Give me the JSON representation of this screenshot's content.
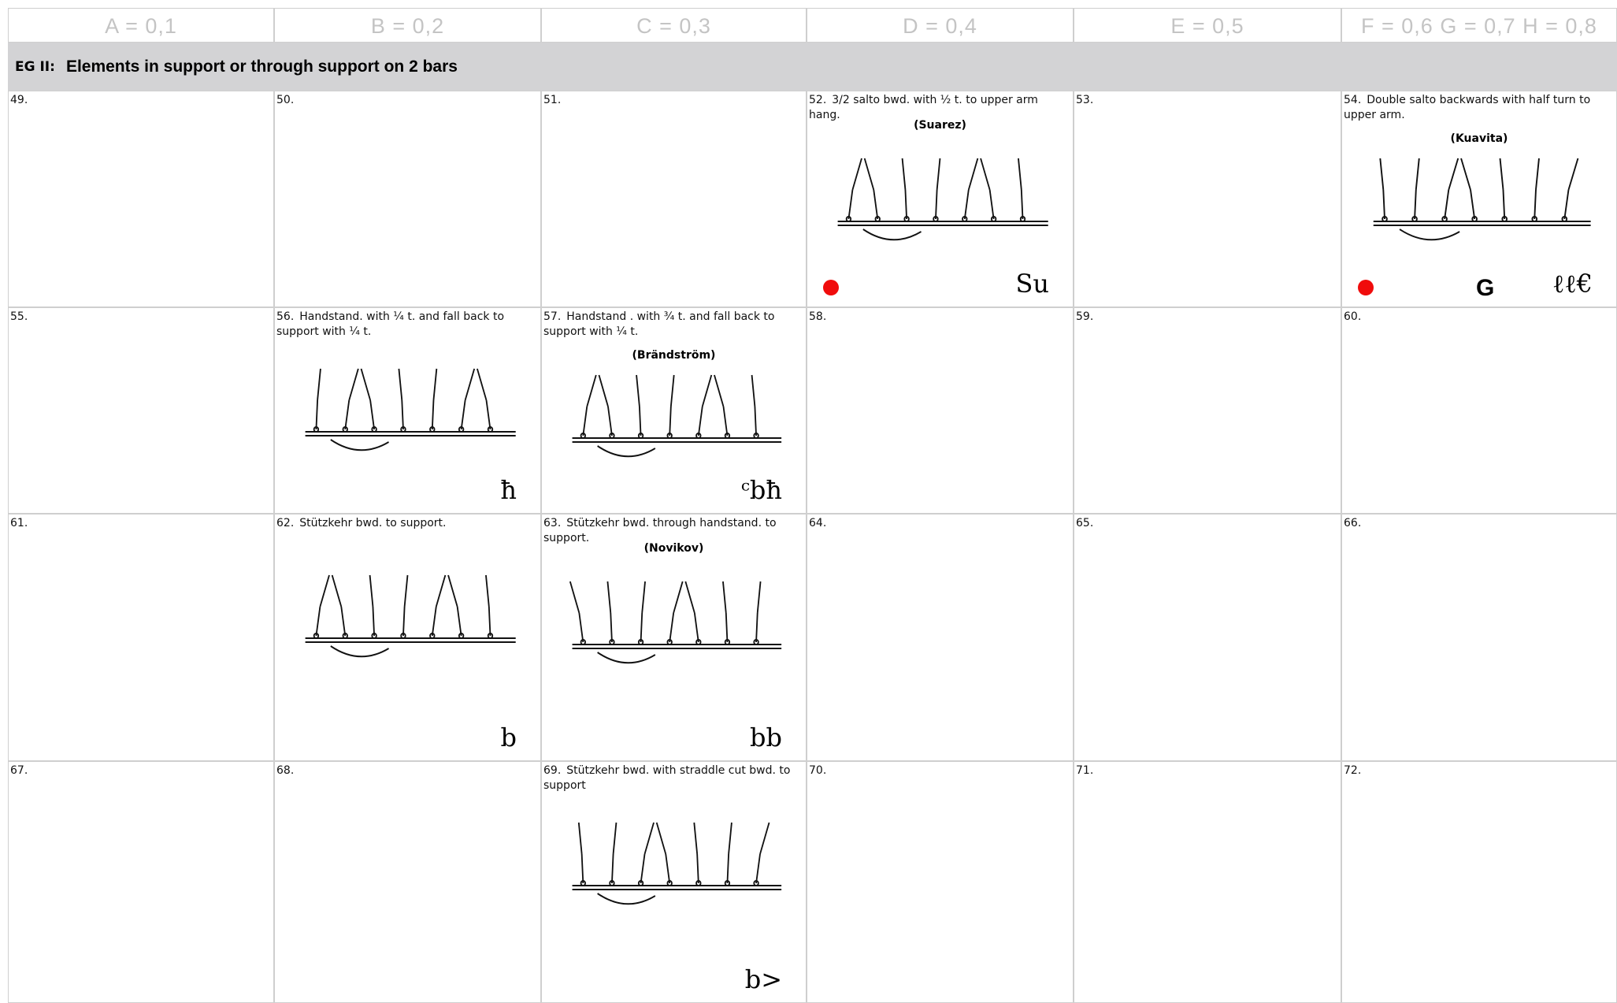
{
  "header": {
    "columns": [
      "A = 0,1",
      "B = 0,2",
      "C = 0,3",
      "D = 0,4",
      "E = 0,5",
      "F = 0,6 G = 0,7 H = 0,8"
    ]
  },
  "group": {
    "code": "EG II:",
    "title": "Elements in support or through support on 2 bars"
  },
  "rows": [
    [
      {
        "number": "49."
      },
      {
        "number": "50."
      },
      {
        "number": "51."
      },
      {
        "number": "52.",
        "text": "3/2 salto bwd. with ½ t. to upper arm hang.",
        "name": "(Suarez)",
        "symbol": "Su"
      },
      {
        "number": "53."
      },
      {
        "number": "54.",
        "text": "Double salto backwards with half turn to upper arm.",
        "name": "(Kuavita)",
        "value_group": "G",
        "symbol": "ℓℓ€"
      }
    ],
    [
      {
        "number": "55."
      },
      {
        "number": "56.",
        "text": "Handstand. with ¼ t. and fall back to support with ¼ t.",
        "symbol": "ħ"
      },
      {
        "number": "57.",
        "text": "Handstand . with ¾ t. and fall back to support with ¼ t.",
        "name": "(Brändström)",
        "symbol": "ᶜbħ"
      },
      {
        "number": "58."
      },
      {
        "number": "59."
      },
      {
        "number": "60."
      }
    ],
    [
      {
        "number": "61."
      },
      {
        "number": "62.",
        "text": "Stützkehr bwd. to support.",
        "symbol": "b"
      },
      {
        "number": "63.",
        "text": "Stützkehr bwd. through handstand. to support.",
        "name": "(Novikov)",
        "symbol": "bb"
      },
      {
        "number": "64."
      },
      {
        "number": "65."
      },
      {
        "number": "66."
      }
    ],
    [
      {
        "number": "67."
      },
      {
        "number": "68."
      },
      {
        "number": "69.",
        "text": "Stützkehr bwd. with straddle cut bwd. to support",
        "symbol": "b>"
      },
      {
        "number": "70."
      },
      {
        "number": "71."
      },
      {
        "number": "72."
      }
    ]
  ]
}
